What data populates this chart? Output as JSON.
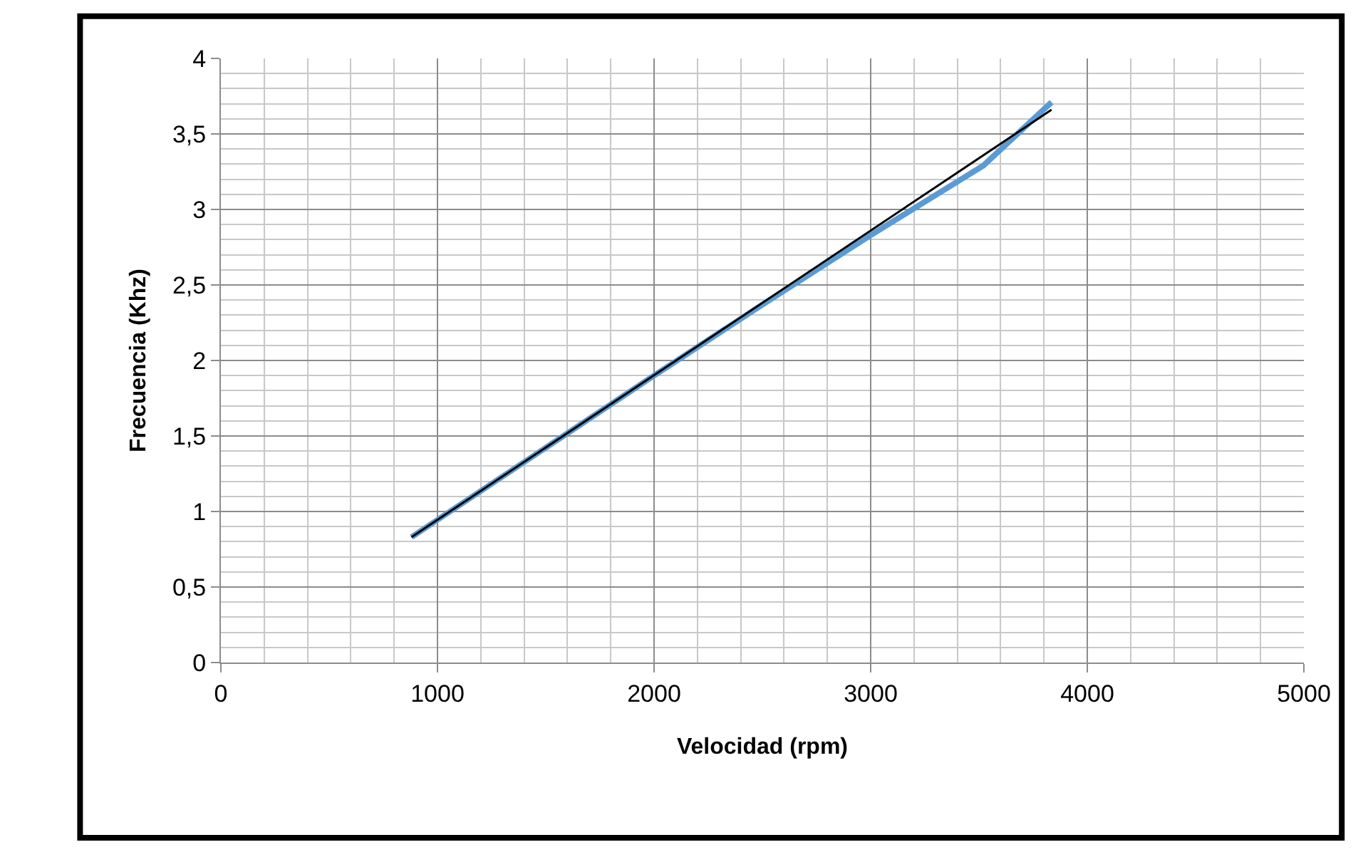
{
  "chart_data": {
    "type": "line",
    "xlabel": "Velocidad (rpm)",
    "ylabel": "Frecuencia (Khz)",
    "xlim": [
      0,
      5000
    ],
    "xticks": [
      0,
      1000,
      2000,
      3000,
      4000,
      5000
    ],
    "ylim": [
      0,
      4
    ],
    "yticks": [
      0,
      {
        "value": 0.5,
        "label": "0,5"
      },
      1,
      {
        "value": 1.5,
        "label": "1,5"
      },
      2,
      {
        "value": 2.5,
        "label": "2,5"
      },
      3,
      {
        "value": 3.5,
        "label": "3,5"
      },
      4
    ],
    "grid": true,
    "series": [
      {
        "color": "#5b9bd5",
        "x": [
          880,
          2000,
          2500,
          3000,
          3520,
          3835
        ],
        "values": [
          0.83,
          1.9,
          2.37,
          2.83,
          3.29,
          3.71
        ]
      },
      {
        "color": "#000000",
        "x": [
          880,
          3835
        ],
        "values": [
          0.83,
          3.66
        ]
      }
    ]
  }
}
